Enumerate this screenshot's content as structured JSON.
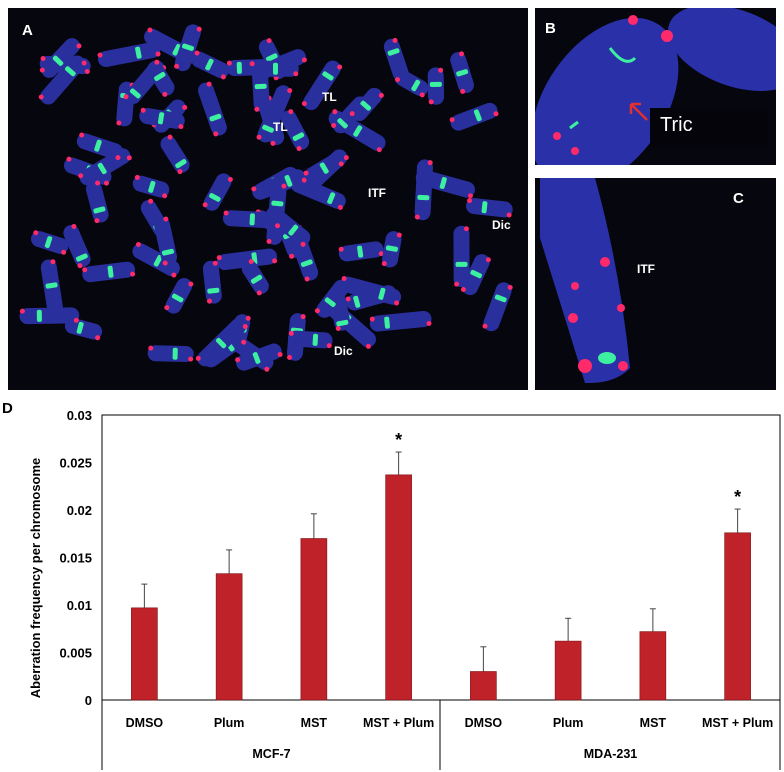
{
  "panels": {
    "a": {
      "label": "A",
      "annotations": [
        "TL",
        "TL",
        "ITF",
        "Dic",
        "Dic"
      ]
    },
    "b": {
      "label": "B",
      "annotation": "Tric"
    },
    "c": {
      "label": "C",
      "annotation": "ITF"
    },
    "d": {
      "label": "D"
    }
  },
  "colors": {
    "bar": "#c0222a",
    "chromosome": "#2a2f9e",
    "telomere": "#ff2a6a",
    "centromere": "#3cf0a0"
  },
  "chart_data": {
    "type": "bar",
    "ylabel": "Aberration frequency per chromosome",
    "ylim": [
      0,
      0.03
    ],
    "yticks": [
      "0",
      "0.005",
      "0.01",
      "0.015",
      "0.02",
      "0.025",
      "0.03"
    ],
    "groups": [
      {
        "name": "MCF-7",
        "categories": [
          "DMSO",
          "Plum",
          "MST",
          "MST + Plum"
        ],
        "values": [
          0.0097,
          0.0133,
          0.017,
          0.0237
        ],
        "errors": [
          0.0025,
          0.0025,
          0.0026,
          0.0024
        ],
        "significance": [
          "",
          "",
          "",
          "*"
        ]
      },
      {
        "name": "MDA-231",
        "categories": [
          "DMSO",
          "Plum",
          "MST",
          "MST + Plum"
        ],
        "values": [
          0.003,
          0.0062,
          0.0072,
          0.0176
        ],
        "errors": [
          0.0026,
          0.0024,
          0.0024,
          0.0025
        ],
        "significance": [
          "",
          "",
          "",
          "*"
        ]
      }
    ]
  }
}
